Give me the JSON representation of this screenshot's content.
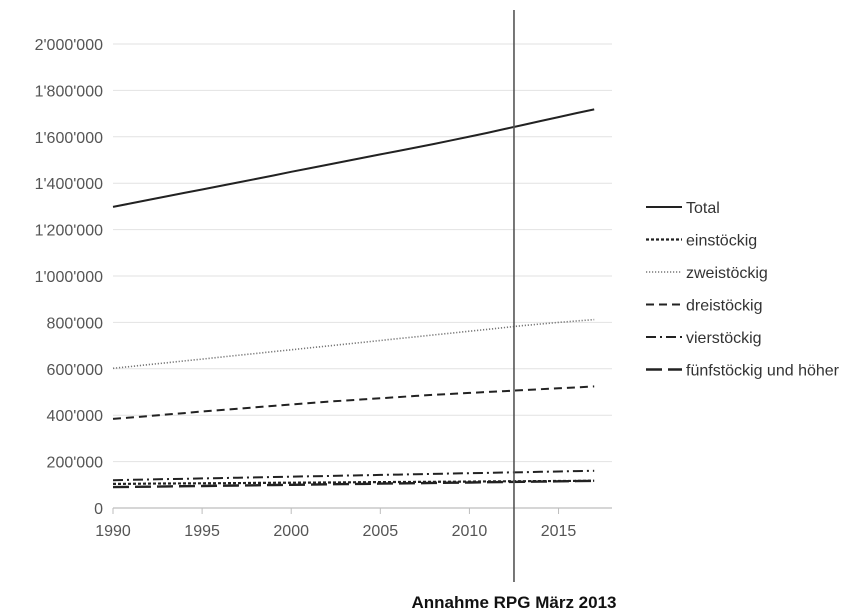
{
  "chart_data": {
    "type": "line",
    "x": [
      1990,
      1991,
      1992,
      1993,
      1994,
      1995,
      1996,
      1997,
      1998,
      1999,
      2000,
      2001,
      2002,
      2003,
      2004,
      2005,
      2006,
      2007,
      2008,
      2009,
      2010,
      2011,
      2012,
      2013,
      2014,
      2015,
      2016,
      2017
    ],
    "series": [
      {
        "name": "Total",
        "style": "solid",
        "values": [
          1298000,
          1313000,
          1328000,
          1343000,
          1358000,
          1373000,
          1388000,
          1403000,
          1418000,
          1433000,
          1449000,
          1464000,
          1479000,
          1494000,
          1509000,
          1524000,
          1539000,
          1554000,
          1569000,
          1585000,
          1601000,
          1617000,
          1634000,
          1651000,
          1668000,
          1685000,
          1702000,
          1718000
        ]
      },
      {
        "name": "einstöckig",
        "style": "short-dash",
        "values": [
          104000,
          104500,
          105000,
          105500,
          106000,
          106500,
          107000,
          107500,
          108000,
          108500,
          109000,
          109500,
          110000,
          110500,
          111000,
          111500,
          112000,
          112500,
          113000,
          113500,
          114000,
          114500,
          115000,
          115500,
          116000,
          116500,
          117000,
          117500
        ]
      },
      {
        "name": "zweistöckig",
        "style": "dotted",
        "values": [
          602000,
          610000,
          618000,
          626000,
          634000,
          642000,
          650000,
          658000,
          666000,
          674000,
          682000,
          690000,
          698000,
          706000,
          714000,
          722000,
          730000,
          738000,
          746000,
          754000,
          762000,
          770000,
          778000,
          786000,
          793000,
          800000,
          806000,
          812000
        ]
      },
      {
        "name": "dreistöckig",
        "style": "dashed",
        "values": [
          384000,
          390000,
          396000,
          403000,
          409000,
          416000,
          422000,
          428000,
          434000,
          440000,
          446000,
          452000,
          458000,
          463000,
          468000,
          473000,
          478000,
          483000,
          488000,
          492000,
          496000,
          500000,
          504000,
          508000,
          512000,
          516000,
          520000,
          524000
        ]
      },
      {
        "name": "vierstöckig",
        "style": "dash-dot",
        "values": [
          120000,
          121500,
          123000,
          124500,
          126000,
          127500,
          129000,
          130500,
          132000,
          133500,
          135000,
          136500,
          138000,
          139500,
          141000,
          142500,
          144000,
          145500,
          147000,
          148500,
          150000,
          151500,
          153000,
          154500,
          156000,
          157500,
          159000,
          160500
        ]
      },
      {
        "name": "fünfstöckig und höher",
        "style": "long-dash",
        "values": [
          90000,
          91000,
          92000,
          93000,
          94000,
          95000,
          96000,
          97000,
          98000,
          99000,
          100000,
          101000,
          102000,
          103000,
          104000,
          105000,
          106000,
          107000,
          108000,
          109000,
          110000,
          111000,
          112000,
          113000,
          114000,
          115000,
          116000,
          117000
        ]
      }
    ],
    "y_ticks": [
      "0",
      "200'000",
      "400'000",
      "600'000",
      "800'000",
      "1'000'000",
      "1'200'000",
      "1'400'000",
      "1'600'000",
      "1'800'000",
      "2'000'000"
    ],
    "x_ticks": [
      "1990",
      "1995",
      "2000",
      "2005",
      "2010",
      "2015"
    ],
    "x_tick_values": [
      1990,
      1995,
      2000,
      2005,
      2010,
      2015
    ],
    "xlim": [
      1990,
      2018
    ],
    "ylim": [
      0,
      2000000
    ],
    "grid": "horizontal",
    "legend_position": "right",
    "annotation": {
      "x": 2012.5,
      "label": "Annahme RPG März 2013"
    }
  }
}
